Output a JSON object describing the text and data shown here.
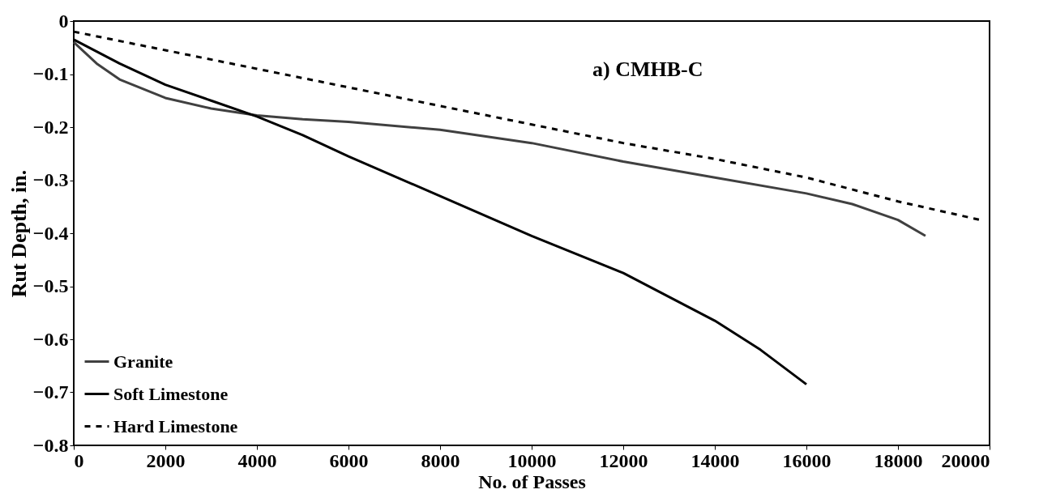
{
  "chart_data": {
    "type": "line",
    "xlabel": "No. of Passes",
    "ylabel": "Rut Depth, in.",
    "annotations": [
      "a) CMHB-C"
    ],
    "xlim": [
      0,
      20000
    ],
    "xticks": [
      0,
      2000,
      4000,
      6000,
      8000,
      10000,
      12000,
      14000,
      16000,
      18000,
      20000
    ],
    "ylim": [
      -0.8,
      0
    ],
    "yticks": [
      -0.8,
      -0.7,
      -0.6,
      -0.5,
      -0.4,
      -0.3,
      -0.2,
      -0.1,
      0
    ],
    "grid": false,
    "legend": "bottom left",
    "marker": "none",
    "series": [
      {
        "name": "Granite",
        "color": "#404040",
        "line_style": "solid",
        "x": [
          0,
          500,
          1000,
          2000,
          3000,
          4000,
          5000,
          6000,
          8000,
          10000,
          12000,
          14000,
          16000,
          17000,
          18000,
          18600
        ],
        "values": [
          -0.04,
          -0.08,
          -0.11,
          -0.145,
          -0.165,
          -0.178,
          -0.185,
          -0.19,
          -0.205,
          -0.23,
          -0.265,
          -0.295,
          -0.325,
          -0.345,
          -0.375,
          -0.405
        ]
      },
      {
        "name": "Soft Limestone",
        "color": "#000000",
        "line_style": "solid",
        "x": [
          0,
          1000,
          2000,
          3000,
          4000,
          5000,
          6000,
          8000,
          10000,
          12000,
          14000,
          15000,
          16000
        ],
        "values": [
          -0.035,
          -0.08,
          -0.12,
          -0.15,
          -0.18,
          -0.215,
          -0.255,
          -0.33,
          -0.405,
          -0.475,
          -0.565,
          -0.62,
          -0.685
        ]
      },
      {
        "name": "Hard Limestone",
        "color": "#000000",
        "line_style": "dashed",
        "x": [
          0,
          2000,
          4000,
          6000,
          8000,
          10000,
          12000,
          14000,
          16000,
          18000,
          19800
        ],
        "values": [
          -0.02,
          -0.055,
          -0.09,
          -0.125,
          -0.16,
          -0.195,
          -0.23,
          -0.26,
          -0.295,
          -0.34,
          -0.375
        ]
      }
    ]
  }
}
